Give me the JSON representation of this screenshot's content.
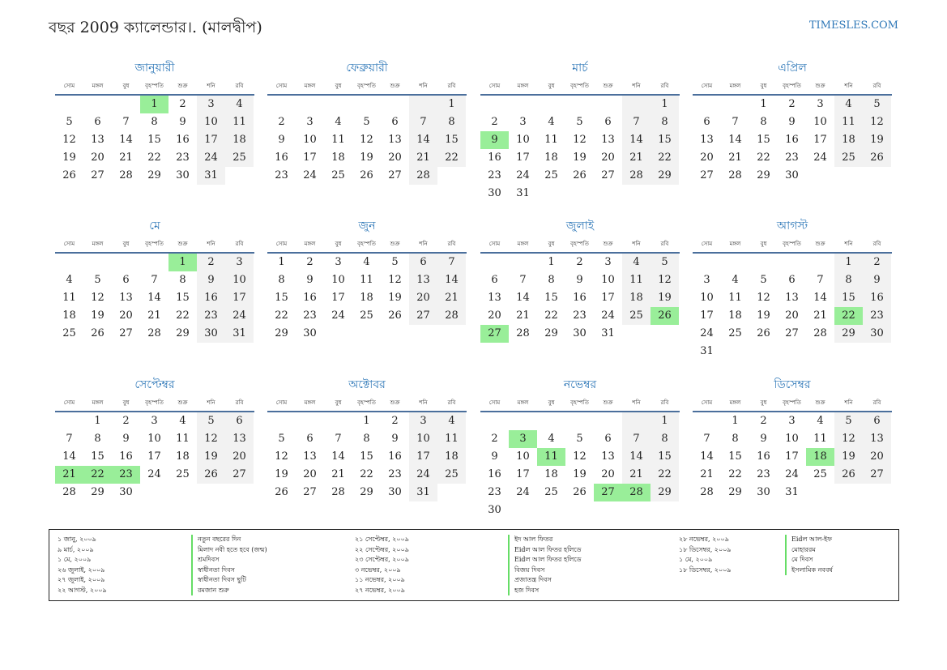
{
  "title": "বছর 2009 ক্যালেন্ডার।. (মালদ্বীপ)",
  "site": "TIMESLES.COM",
  "weekdays": [
    "সোম",
    "মঙ্গল",
    "বুধ",
    "বৃহস্পতি",
    "শুক্র",
    "শনি",
    "রবি"
  ],
  "months": [
    {
      "name": "জানুয়ারী",
      "start": 3,
      "days": 31,
      "highlights": [
        1
      ]
    },
    {
      "name": "ফেব্রুয়ারী",
      "start": 6,
      "days": 28,
      "highlights": []
    },
    {
      "name": "মার্চ",
      "start": 6,
      "days": 31,
      "highlights": [
        9
      ]
    },
    {
      "name": "এপ্রিল",
      "start": 2,
      "days": 30,
      "highlights": []
    },
    {
      "name": "মে",
      "start": 4,
      "days": 31,
      "highlights": [
        1
      ]
    },
    {
      "name": "জুন",
      "start": 0,
      "days": 30,
      "highlights": []
    },
    {
      "name": "জুলাই",
      "start": 2,
      "days": 31,
      "highlights": [
        26,
        27
      ]
    },
    {
      "name": "আগস্ট",
      "start": 5,
      "days": 31,
      "highlights": [
        22
      ]
    },
    {
      "name": "সেপ্টেম্বর",
      "start": 1,
      "days": 30,
      "highlights": [
        21,
        22,
        23
      ]
    },
    {
      "name": "অক্টোবর",
      "start": 3,
      "days": 31,
      "highlights": []
    },
    {
      "name": "নভেম্বর",
      "start": 6,
      "days": 30,
      "highlights": [
        3,
        11,
        27,
        28
      ]
    },
    {
      "name": "ডিসেম্বর",
      "start": 1,
      "days": 31,
      "highlights": [
        18
      ]
    }
  ],
  "holidays": {
    "col1": [
      {
        "date": "১ জানু, ২০০৯",
        "name": "নতুন বছরের দিন"
      },
      {
        "date": "৯ মার্চ, ২০০৯",
        "name": "মিলাদ নবী হতে হবে (জন্ম)"
      },
      {
        "date": "১ মে, ২০০৯",
        "name": "শ্রমদিবস"
      },
      {
        "date": "২৬ জুলাই, ২০০৯",
        "name": "স্বাধীনতা দিবস"
      },
      {
        "date": "২৭ জুলাই, ২০০৯",
        "name": "স্বাধীনতা দিবস ছুটি"
      },
      {
        "date": "২২ আগস্ট, ২০০৯",
        "name": "রমজান শুরু"
      }
    ],
    "col2": [
      {
        "date": "২১ সেপ্টেম্বর, ২০০৯",
        "name": "ইদ আল ফিতর"
      },
      {
        "date": "২২ সেপ্টেম্বর, ২০০৯",
        "name": "Eidল আল ফিতর হলিডে"
      },
      {
        "date": "২৩ সেপ্টেম্বর, ২০০৯",
        "name": "Eidল আল ফিতর হলিডে"
      },
      {
        "date": "৩ নভেম্বর, ২০০৯",
        "name": "বিজয় দিবস"
      },
      {
        "date": "১১ নভেম্বর, ২০০৯",
        "name": "প্রজাতন্ত্র দিবস"
      },
      {
        "date": "২৭ নভেম্বর, ২০০৯",
        "name": "হজ দিবস"
      }
    ],
    "col3": [
      {
        "date": "২৮ নভেম্বর, ২০০৯",
        "name": "Eidল আল-ইফ"
      },
      {
        "date": "১৮ ডিসেম্বর, ২০০৯",
        "name": "মোহাররম"
      },
      {
        "date": "১ মে, ২০০৯",
        "name": "মে দিবস"
      },
      {
        "date": "১৮ ডিসেম্বর, ২০০৯",
        "name": "ইসলামিক নববর্ষ"
      }
    ]
  },
  "colors": {
    "accent": "#2f78b8",
    "weekend": "#f2f2f2",
    "highlight": "#99ee99",
    "rule": "#4b6f9c"
  }
}
